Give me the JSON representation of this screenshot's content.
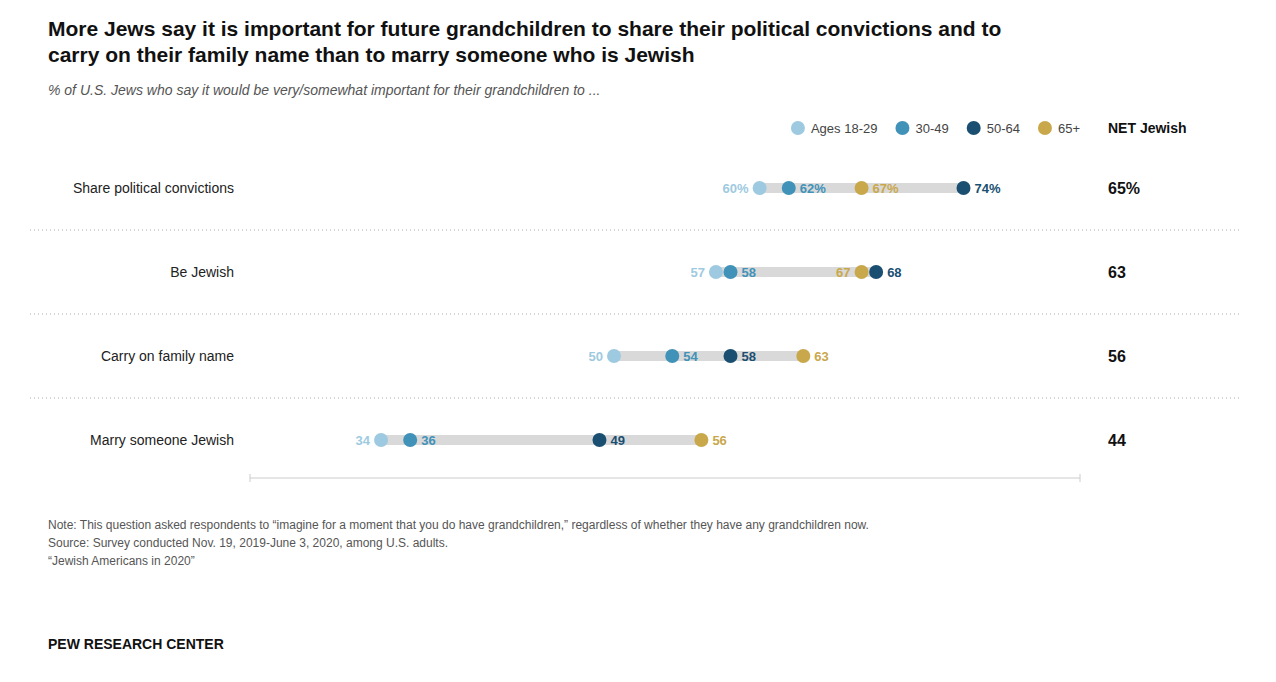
{
  "chart_data": {
    "type": "dumbbell",
    "title": "More Jews say it is important for future grandchildren to share their political convictions and to carry on their family name than to marry someone who is Jewish",
    "subtitle": "% of U.S. Jews who say it would be very/somewhat important for their grandchildren to ...",
    "categories": [
      "Share political convictions",
      "Be Jewish",
      "Carry on family name",
      "Marry someone Jewish"
    ],
    "series": [
      {
        "name": "Ages 18-29",
        "color": "#9ecae1",
        "values": [
          60,
          57,
          50,
          34
        ],
        "value_labels": [
          "60%",
          "57",
          "50",
          "34"
        ]
      },
      {
        "name": "30-49",
        "color": "#4192b8",
        "values": [
          62,
          58,
          54,
          36
        ],
        "value_labels": [
          "62%",
          "58",
          "54",
          "36"
        ]
      },
      {
        "name": "50-64",
        "color": "#1a4f72",
        "values": [
          74,
          68,
          58,
          49
        ],
        "value_labels": [
          "74%",
          "68",
          "58",
          "49"
        ]
      },
      {
        "name": "65+",
        "color": "#c9a84c",
        "values": [
          67,
          67,
          63,
          56
        ],
        "value_labels": [
          "67%",
          "67",
          "63",
          "56"
        ]
      }
    ],
    "net": {
      "title": "NET Jewish",
      "values": [
        65,
        63,
        56,
        44
      ],
      "value_labels": [
        "65%",
        "63",
        "56",
        "44"
      ]
    },
    "color": "#d9d9d9",
    "xlim": [
      25,
      82
    ],
    "orientation": "horizontal",
    "tick_labels": false,
    "grid": false,
    "legend": "top",
    "data_labels": true,
    "notes": [
      "Note: This question asked respondents to “imagine for a moment that you do have grandchildren,” regardless of whether they have any grandchildren now.",
      "Source: Survey conducted Nov. 19, 2019-June 3, 2020, among U.S. adults.",
      "“Jewish Americans in 2020”"
    ],
    "footer": "PEW RESEARCH CENTER"
  }
}
